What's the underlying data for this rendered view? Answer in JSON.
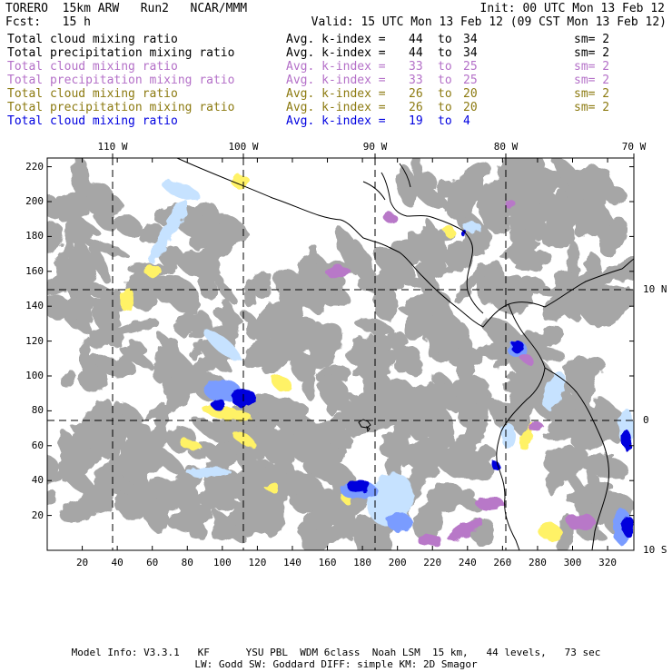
{
  "header": {
    "line1_left": "TORERO  15km ARW   Run2   NCAR/MMM",
    "line1_right": "Init: 00 UTC Mon 13 Feb 12",
    "line2_left": "Fcst:   15 h",
    "line2_right": "Valid: 15 UTC Mon 13 Feb 12 (09 CST Mon 13 Feb 12)"
  },
  "legend": [
    {
      "field": "Total cloud mixing ratio",
      "avg": "Avg. k-index =",
      "k1": "44",
      "to": "to",
      "k2": "34",
      "sm": "sm= 2",
      "color": "#000000"
    },
    {
      "field": "Total precipitation mixing ratio",
      "avg": "Avg. k-index =",
      "k1": "44",
      "to": "to",
      "k2": "34",
      "sm": "sm= 2",
      "color": "#000000"
    },
    {
      "field": "Total cloud mixing ratio",
      "avg": "Avg. k-index =",
      "k1": "33",
      "to": "to",
      "k2": "25",
      "sm": "sm= 2",
      "color": "#b470c8"
    },
    {
      "field": "Total precipitation mixing ratio",
      "avg": "Avg. k-index =",
      "k1": "33",
      "to": "to",
      "k2": "25",
      "sm": "sm= 2",
      "color": "#b470c8"
    },
    {
      "field": "Total cloud mixing ratio",
      "avg": "Avg. k-index =",
      "k1": "26",
      "to": "to",
      "k2": "20",
      "sm": "sm= 2",
      "color": "#8c7a10"
    },
    {
      "field": "Total precipitation mixing ratio",
      "avg": "Avg. k-index =",
      "k1": "26",
      "to": "to",
      "k2": "20",
      "sm": "sm= 2",
      "color": "#8c7a10"
    },
    {
      "field": "Total cloud mixing ratio",
      "avg": "Avg. k-index =",
      "k1": "19",
      "to": "to",
      "k2": "4",
      "sm": "",
      "color": "#0000e0"
    }
  ],
  "map": {
    "longitude_labels": [
      {
        "label": "110 W",
        "value": 110
      },
      {
        "label": "100 W",
        "value": 100
      },
      {
        "label": "90 W",
        "value": 90
      },
      {
        "label": "80 W",
        "value": 80
      },
      {
        "label": "70 W",
        "value": 70
      }
    ],
    "latitude_labels": [
      {
        "label": "10 N",
        "value": 10
      },
      {
        "label": "0",
        "value": 0
      },
      {
        "label": "10 S",
        "value": -10
      }
    ],
    "x_ticks": [
      20,
      40,
      60,
      80,
      100,
      120,
      140,
      160,
      180,
      200,
      220,
      240,
      260,
      280,
      300,
      320
    ],
    "y_ticks": [
      20,
      40,
      60,
      80,
      100,
      120,
      140,
      160,
      180,
      200,
      220
    ],
    "grid_x_range": [
      0,
      335
    ],
    "grid_y_range": [
      0,
      225
    ],
    "colors": {
      "cloud_gray": "#a6a6a6",
      "yellow": "#fff266",
      "purple": "#b878c8",
      "light_blue": "#c6e2ff",
      "mid_blue": "#7a9cff",
      "dark_blue": "#0000dd",
      "coast": "#000000"
    }
  },
  "footer": {
    "line1": "Model Info: V3.3.1   KF      YSU PBL  WDM 6class  Noah LSM  15 km,   44 levels,   73 sec",
    "line2": "LW: Godd SW: Goddard DIFF: simple KM: 2D Smagor"
  }
}
